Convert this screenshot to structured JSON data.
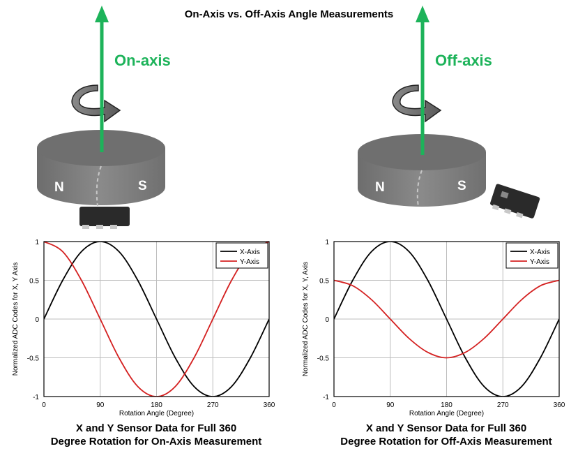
{
  "title": "On-Axis vs. Off-Axis Angle Measurements",
  "colors": {
    "arrow": "#1db35a",
    "magnet": "#7b7b7b",
    "x_series": "#000000",
    "y_series": "#d42020"
  },
  "icons": [
    "rotation-arrow-icon",
    "magnet-cylinder",
    "sensor-chip-icon"
  ],
  "diagrams": [
    {
      "label": "On-axis",
      "pole_north": "N",
      "pole_south": "S"
    },
    {
      "label": "Off-axis",
      "pole_north": "N",
      "pole_south": "S"
    }
  ],
  "chart_data": [
    {
      "type": "line",
      "xlabel": "Rotation Angle (Degree)",
      "ylabel": "Normalized ADC Codes for X, Y Axis",
      "xlim": [
        0,
        360
      ],
      "ylim": [
        -1,
        1
      ],
      "xticks": [
        "0",
        "90",
        "180",
        "270",
        "360"
      ],
      "yticks": [
        "1",
        "0.5",
        "0",
        "-0.5",
        "-1"
      ],
      "grid": true,
      "legend": "top-right",
      "x": [
        0,
        30,
        60,
        90,
        120,
        150,
        180,
        210,
        240,
        270,
        300,
        330,
        360
      ],
      "series": [
        {
          "name": "X-Axis",
          "values": [
            0,
            0.5,
            0.87,
            1,
            0.87,
            0.5,
            0,
            -0.5,
            -0.87,
            -1,
            -0.87,
            -0.5,
            0
          ]
        },
        {
          "name": "Y-Axis",
          "values": [
            1,
            0.87,
            0.5,
            0,
            -0.5,
            -0.87,
            -1,
            -0.87,
            -0.5,
            0,
            0.5,
            0.87,
            1
          ]
        }
      ],
      "caption_line1": "X and Y Sensor Data for Full 360",
      "caption_line2": "Degree Rotation for On-Axis Measurement"
    },
    {
      "type": "line",
      "xlabel": "Rotation Angle (Degree)",
      "ylabel": "Normalized ADC Codes for X, Y, Axis",
      "xlim": [
        0,
        360
      ],
      "ylim": [
        -1,
        1
      ],
      "xticks": [
        "0",
        "90",
        "180",
        "270",
        "360"
      ],
      "yticks": [
        "1",
        "0.5",
        "0",
        "-0.5",
        "-1"
      ],
      "grid": true,
      "legend": "top-right",
      "x": [
        0,
        30,
        60,
        90,
        120,
        150,
        180,
        210,
        240,
        270,
        300,
        330,
        360
      ],
      "series": [
        {
          "name": "X-Axis",
          "values": [
            0,
            0.5,
            0.87,
            1,
            0.87,
            0.5,
            0,
            -0.5,
            -0.87,
            -1,
            -0.87,
            -0.5,
            0
          ]
        },
        {
          "name": "Y-Axis",
          "values": [
            0.5,
            0.43,
            0.25,
            0,
            -0.25,
            -0.43,
            -0.5,
            -0.43,
            -0.25,
            0,
            0.25,
            0.43,
            0.5
          ]
        }
      ],
      "caption_line1": "X and Y Sensor Data for Full 360",
      "caption_line2": "Degree Rotation for Off-Axis Measurement"
    }
  ]
}
